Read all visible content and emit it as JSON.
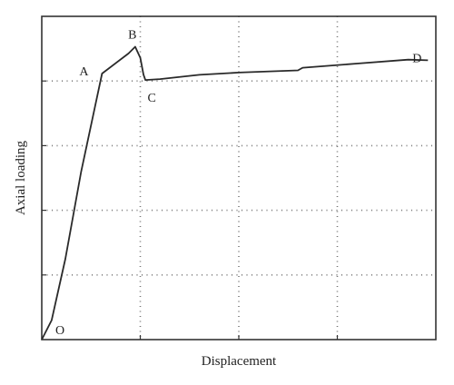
{
  "chart_data": {
    "type": "line",
    "title": "",
    "xlabel": "Displacement",
    "ylabel": "Axial loading",
    "xlim": [
      0,
      100
    ],
    "ylim": [
      0,
      100
    ],
    "grid": true,
    "x_gridlines": [
      25,
      50,
      75
    ],
    "y_gridlines": [
      20,
      40,
      60,
      80
    ],
    "series": [
      {
        "points": [
          {
            "x": 0,
            "y": 0
          },
          {
            "x": 2.5,
            "y": 6
          },
          {
            "x": 6,
            "y": 25
          },
          {
            "x": 10,
            "y": 52
          },
          {
            "x": 15.3,
            "y": 82.3
          },
          {
            "x": 22,
            "y": 88.5
          },
          {
            "x": 23.7,
            "y": 90.6
          },
          {
            "x": 25,
            "y": 87.2
          },
          {
            "x": 25.8,
            "y": 82
          },
          {
            "x": 26.3,
            "y": 80.3
          },
          {
            "x": 30,
            "y": 80.6
          },
          {
            "x": 40,
            "y": 81.9
          },
          {
            "x": 50,
            "y": 82.6
          },
          {
            "x": 65,
            "y": 83.3
          },
          {
            "x": 66.2,
            "y": 84.1
          },
          {
            "x": 80,
            "y": 85.4
          },
          {
            "x": 93,
            "y": 86.6
          },
          {
            "x": 98,
            "y": 86.4
          }
        ]
      }
    ],
    "point_labels": [
      {
        "text": "O",
        "x": 0,
        "y": 0
      },
      {
        "text": "A",
        "x": 15.3,
        "y": 82.3
      },
      {
        "text": "B",
        "x": 23.7,
        "y": 90.6
      },
      {
        "text": "C",
        "x": 26.3,
        "y": 80.3
      },
      {
        "text": "D",
        "x": 98,
        "y": 86.4
      }
    ]
  }
}
